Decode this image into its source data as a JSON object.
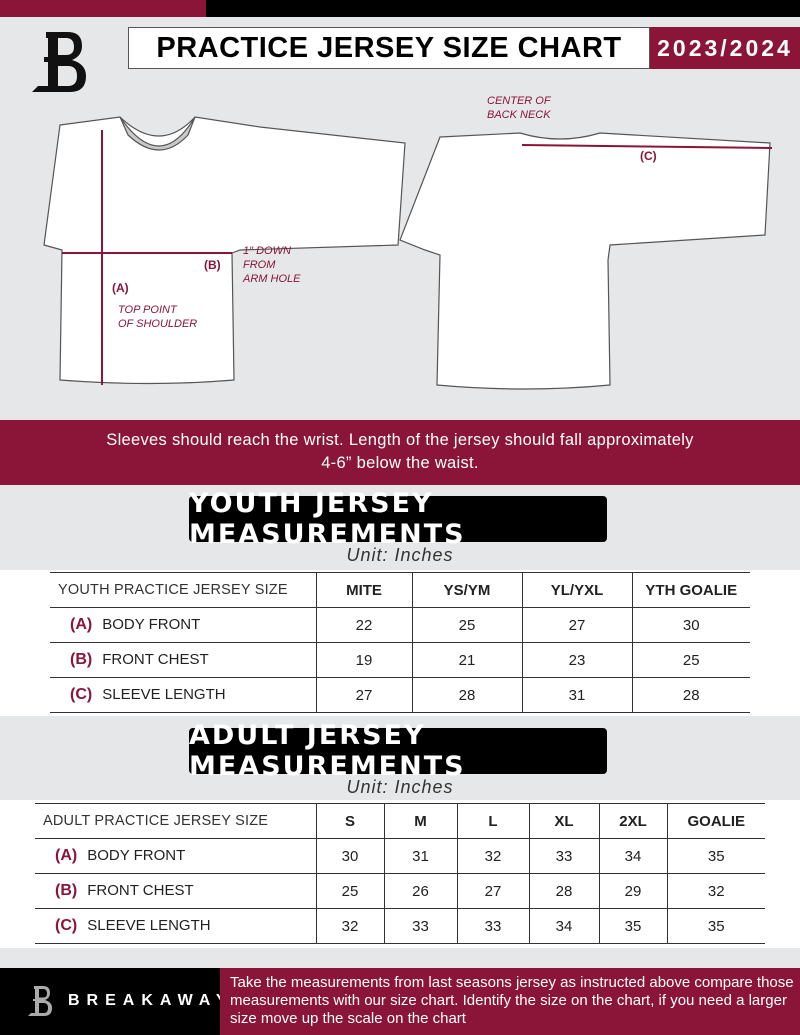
{
  "header": {
    "title": "PRACTICE JERSEY SIZE CHART",
    "season": "2023/2024",
    "logo": "B"
  },
  "diagram": {
    "front_notes": {
      "a": "(A)",
      "b": "(B)",
      "top_point": "TOP POINT\nOF SHOULDER",
      "arm_hole": "1\" DOWN\nFROM\nARM HOLE"
    },
    "back_notes": {
      "c": "(C)",
      "center": "CENTER OF\nBACK NECK"
    }
  },
  "instructions": "Sleeves should reach the wrist. Length of the jersey should fall approximately 4-6” below the waist.",
  "youth": {
    "title": "YOUTH JERSEY MEASUREMENTS",
    "unit": "Unit: Inches",
    "header": [
      "YOUTH PRACTICE JERSEY SIZE",
      "MITE",
      "YS/YM",
      "YL/YXL",
      "YTH GOALIE"
    ],
    "rows": [
      {
        "key": "(A)",
        "label": "BODY FRONT",
        "values": [
          "22",
          "25",
          "27",
          "30"
        ]
      },
      {
        "key": "(B)",
        "label": "FRONT CHEST",
        "values": [
          "19",
          "21",
          "23",
          "25"
        ]
      },
      {
        "key": "(C)",
        "label": "SLEEVE LENGTH",
        "values": [
          "27",
          "28",
          "31",
          "28"
        ]
      }
    ]
  },
  "adult": {
    "title": "ADULT JERSEY MEASUREMENTS",
    "unit": "Unit: Inches",
    "header": [
      "ADULT PRACTICE JERSEY SIZE",
      "S",
      "M",
      "L",
      "XL",
      "2XL",
      "GOALIE"
    ],
    "rows": [
      {
        "key": "(A)",
        "label": "BODY FRONT",
        "values": [
          "30",
          "31",
          "32",
          "33",
          "34",
          "35"
        ]
      },
      {
        "key": "(B)",
        "label": "FRONT CHEST",
        "values": [
          "25",
          "26",
          "27",
          "28",
          "29",
          "32"
        ]
      },
      {
        "key": "(C)",
        "label": "SLEEVE LENGTH",
        "values": [
          "32",
          "33",
          "33",
          "34",
          "35",
          "35"
        ]
      }
    ]
  },
  "footer": {
    "brand": "BREAKAWAY",
    "text": "Take the measurements from last seasons jersey as instructed above compare those measurements  with our size chart. Identify the size on the chart, if you need a larger size move up the scale on the chart"
  },
  "colors": {
    "accent": "#8a1538",
    "dark": "#000000",
    "background": "#e6e7e8"
  }
}
